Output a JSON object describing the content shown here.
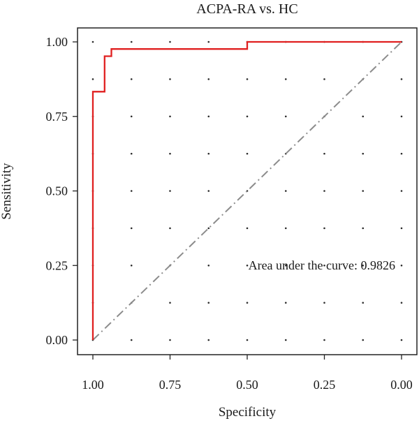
{
  "chart_data": {
    "type": "line",
    "title": "ACPA-RA vs. HC",
    "xlabel": "Specificity",
    "ylabel": "Sensitivity",
    "x_reversed": true,
    "xlim": [
      1.0,
      0.0
    ],
    "ylim": [
      0.0,
      1.0
    ],
    "x_ticks": [
      "1.00",
      "0.75",
      "0.50",
      "0.25",
      "0.00"
    ],
    "y_ticks": [
      "0.00",
      "0.25",
      "0.50",
      "0.75",
      "1.00"
    ],
    "grid": "dotted",
    "series": [
      {
        "color": "#e02020",
        "points": [
          {
            "specificity": 1.0,
            "sensitivity": 0.0
          },
          {
            "specificity": 1.0,
            "sensitivity": 0.833
          },
          {
            "specificity": 0.962,
            "sensitivity": 0.833
          },
          {
            "specificity": 0.962,
            "sensitivity": 0.952
          },
          {
            "specificity": 0.94,
            "sensitivity": 0.952
          },
          {
            "specificity": 0.94,
            "sensitivity": 0.976
          },
          {
            "specificity": 0.5,
            "sensitivity": 0.976
          },
          {
            "specificity": 0.5,
            "sensitivity": 1.0
          },
          {
            "specificity": 0.0,
            "sensitivity": 1.0
          }
        ]
      }
    ],
    "reference_line": {
      "color": "#8c8c8c",
      "style": "dash-dot",
      "from": [
        1.0,
        0.0
      ],
      "to": [
        0.0,
        1.0
      ]
    },
    "annotation": "Area under the curve: 0.9826"
  }
}
